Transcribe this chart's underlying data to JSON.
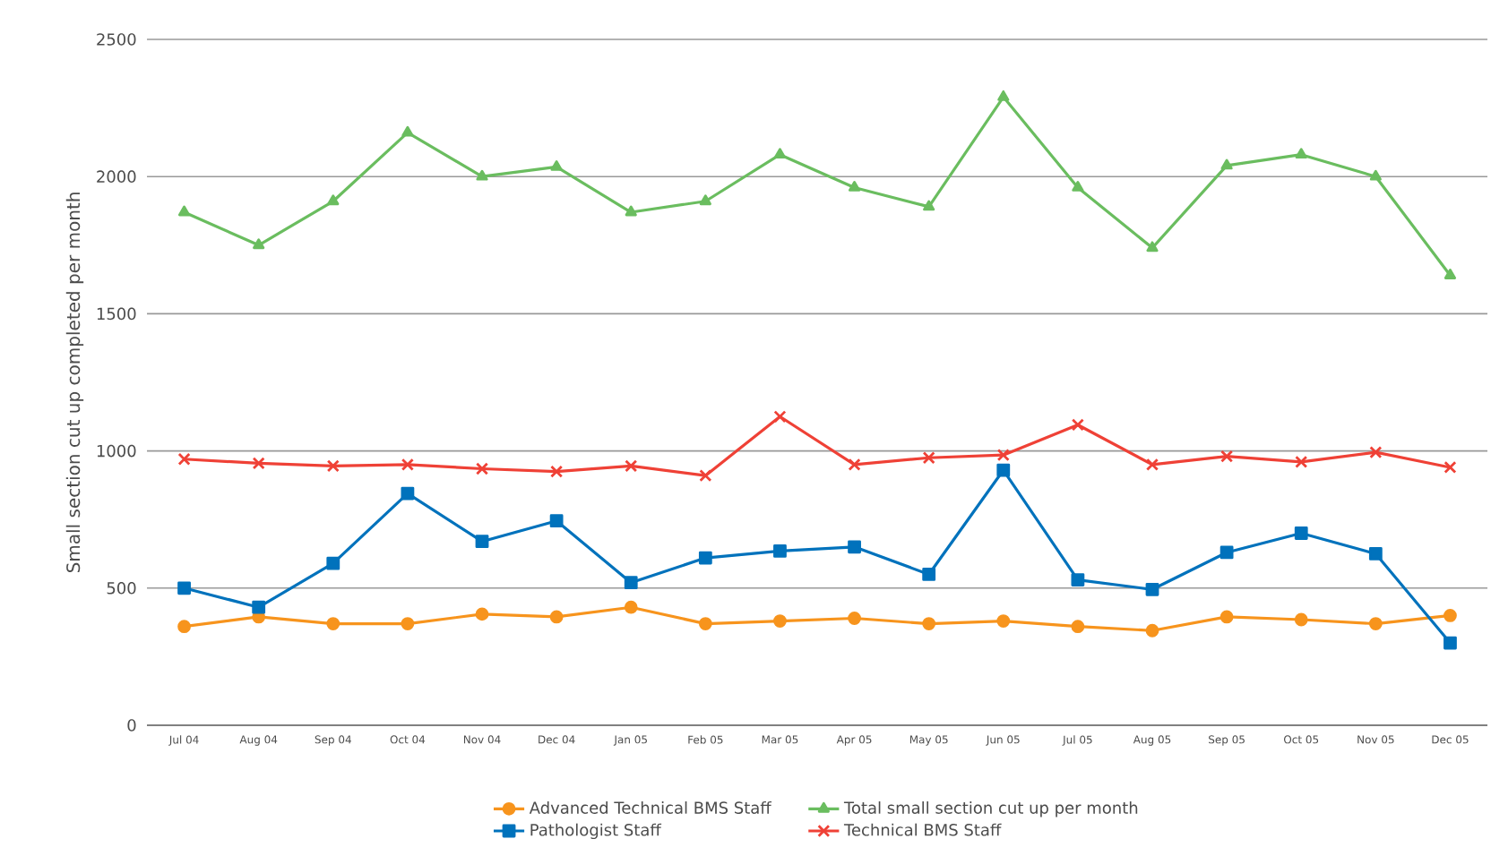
{
  "chart_data": {
    "type": "line",
    "ylabel": "Small section cut up completed per month",
    "categories": [
      "Jul 04",
      "Aug 04",
      "Sep 04",
      "Oct 04",
      "Nov 04",
      "Dec 04",
      "Jan 05",
      "Feb 05",
      "Mar 05",
      "Apr 05",
      "May 05",
      "Jun 05",
      "Jul 05",
      "Aug 05",
      "Sep 05",
      "Oct 05",
      "Nov 05",
      "Dec 05"
    ],
    "series": [
      {
        "name": "Advanced Technical BMS Staff",
        "color": "#f7941d",
        "marker": "circle",
        "values": [
          360,
          395,
          370,
          370,
          405,
          395,
          430,
          370,
          380,
          390,
          370,
          380,
          360,
          345,
          395,
          385,
          370,
          400
        ]
      },
      {
        "name": "Total small section cut up per month",
        "color": "#6abd5f",
        "marker": "triangle",
        "values": [
          1870,
          1750,
          1910,
          2160,
          2000,
          2035,
          1870,
          1910,
          2080,
          1960,
          1890,
          2290,
          1960,
          1740,
          2040,
          2080,
          2000,
          1640
        ]
      },
      {
        "name": "Pathologist Staff",
        "color": "#0072bc",
        "marker": "square",
        "values": [
          500,
          430,
          590,
          845,
          670,
          745,
          520,
          610,
          635,
          650,
          550,
          930,
          530,
          495,
          630,
          700,
          625,
          300
        ]
      },
      {
        "name": "Technical BMS Staff",
        "color": "#ef4136",
        "marker": "cross",
        "values": [
          970,
          955,
          945,
          950,
          935,
          925,
          945,
          910,
          1125,
          950,
          975,
          985,
          1095,
          950,
          980,
          960,
          995,
          940
        ]
      }
    ],
    "ylim": [
      0,
      2500
    ],
    "yticks": [
      0,
      500,
      1000,
      1500,
      2000,
      2500
    ],
    "grid": "y",
    "legend": "bottom",
    "line_style": "solid"
  }
}
